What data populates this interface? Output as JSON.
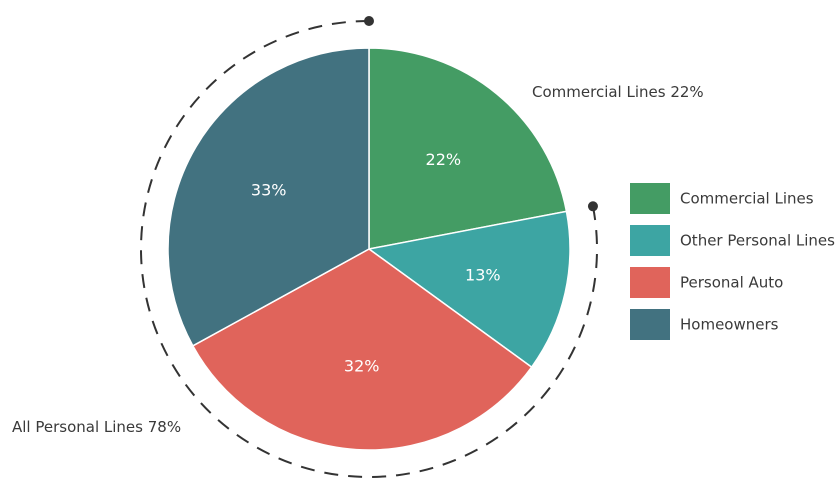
{
  "chart_data": {
    "type": "pie",
    "title": "",
    "categories": [
      "Commercial Lines",
      "Other Personal Lines",
      "Personal Auto",
      "Homeowners"
    ],
    "values": [
      22,
      13,
      32,
      33
    ],
    "value_labels": [
      "22%",
      "13%",
      "32%",
      "33%"
    ],
    "colors": [
      "#449c64",
      "#3da5a3",
      "#e0645b",
      "#427280"
    ],
    "legend": {
      "position": "right",
      "entries": [
        "Commercial Lines",
        "Other Personal Lines",
        "Personal Auto",
        "Homeowners"
      ]
    },
    "annotations": [
      {
        "text": "Commercial Lines 22%",
        "group": "Commercial Lines",
        "value": 22
      },
      {
        "text": "All Personal Lines 78%",
        "group": "Personal Lines",
        "value": 78
      }
    ]
  }
}
